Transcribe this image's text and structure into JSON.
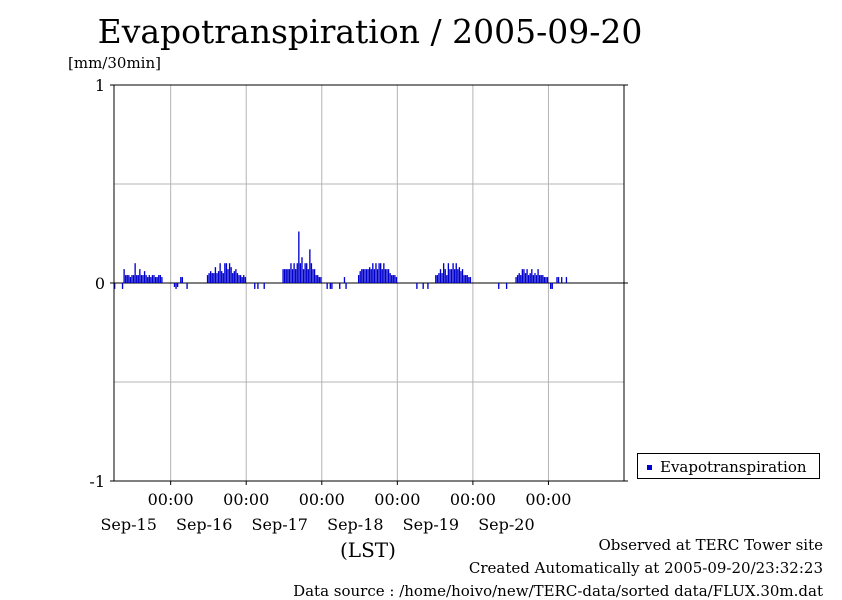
{
  "title": "Evapotranspiration / 2005-09-20",
  "unit": "[mm/30min]",
  "x_unit": "(LST)",
  "legend_label": "Evapotranspiration",
  "series_color": "#0000cc",
  "footer": {
    "line1": "Observed at TERC Tower site",
    "line2": "Created Automatically at 2005-09-20/23:32:23",
    "line3": "Data source : /home/hoivo/new/TERC-data/sorted  data/FLUX.30m.dat"
  },
  "chart_data": {
    "type": "bar",
    "title": "Evapotranspiration / 2005-09-20",
    "ylabel": "[mm/30min]",
    "xlabel": "(LST)",
    "ylim": [
      -1,
      1
    ],
    "yticks": [
      -1,
      0,
      1
    ],
    "xlim_days": [
      "2005-09-14 06:00",
      "2005-09-21 00:00"
    ],
    "grid": true,
    "legend_position": "right",
    "xticks": [
      {
        "time": "00:00",
        "date": "Sep-15"
      },
      {
        "time": "00:00",
        "date": "Sep-16"
      },
      {
        "time": "00:00",
        "date": "Sep-17"
      },
      {
        "time": "00:00",
        "date": "Sep-18"
      },
      {
        "time": "00:00",
        "date": "Sep-19"
      },
      {
        "time": "00:00",
        "date": "Sep-20"
      }
    ],
    "series": [
      {
        "name": "Evapotranspiration",
        "day_starts": [
          "2005-09-14",
          "2005-09-15",
          "2005-09-16",
          "2005-09-17",
          "2005-09-18",
          "2005-09-19",
          "2005-09-20"
        ],
        "values_by_day": [
          [
            0,
            0,
            0,
            0,
            0,
            0,
            0,
            0,
            0,
            0,
            0,
            0,
            -0.03,
            0,
            0,
            0,
            0,
            -0.03,
            0.07,
            0.04,
            0.04,
            0.04,
            0.03,
            0.04,
            0.04,
            0.1,
            0.04,
            0.04,
            0.07,
            0.04,
            0.04,
            0.06,
            0.04,
            0.03,
            0.04,
            0.03,
            0.04,
            0.04,
            0.03,
            0.03,
            0.04,
            0.04,
            0.03,
            0,
            0,
            0,
            0,
            0
          ],
          [
            0,
            0,
            -0.02,
            -0.03,
            -0.02,
            0,
            0.03,
            0.03,
            0,
            0,
            -0.03,
            0,
            0,
            0,
            0,
            0,
            0,
            0,
            0,
            0,
            0,
            0,
            0,
            0.04,
            0.05,
            0.06,
            0.05,
            0.05,
            0.08,
            0.05,
            0.06,
            0.1,
            0.06,
            0.05,
            0.1,
            0.1,
            0.07,
            0.1,
            0.08,
            0.05,
            0.06,
            0.07,
            0.05,
            0.04,
            0.04,
            0.03,
            0.04,
            0.03
          ],
          [
            0,
            0,
            0,
            0,
            0,
            -0.03,
            0,
            -0.03,
            0,
            0,
            0,
            -0.03,
            0,
            0,
            0,
            0,
            0,
            0,
            0,
            0,
            0,
            0,
            0,
            0.07,
            0.07,
            0.07,
            0.07,
            0.07,
            0.1,
            0.07,
            0.1,
            0.07,
            0.1,
            0.26,
            0.1,
            0.13,
            0.07,
            0.1,
            0.1,
            0.07,
            0.17,
            0.1,
            0.07,
            0.07,
            0.04,
            0.04,
            0.03,
            0.03
          ],
          [
            0,
            0,
            0,
            -0.03,
            0,
            -0.03,
            -0.03,
            0,
            0,
            0,
            0,
            -0.03,
            0,
            0,
            0.03,
            -0.03,
            0,
            0,
            0,
            0,
            0,
            0,
            0,
            0.04,
            0.06,
            0.07,
            0.07,
            0.07,
            0.07,
            0.07,
            0.08,
            0.07,
            0.1,
            0.07,
            0.1,
            0.07,
            0.1,
            0.1,
            0.07,
            0.1,
            0.07,
            0.07,
            0.07,
            0.05,
            0.04,
            0.04,
            0.04,
            0.03
          ],
          [
            0,
            0,
            0,
            0,
            0,
            0,
            0,
            0,
            0,
            0,
            0,
            0,
            -0.03,
            0,
            0,
            0,
            -0.03,
            0,
            0,
            -0.03,
            0,
            0,
            0,
            0,
            0.04,
            0.04,
            0.05,
            0.07,
            0.05,
            0.1,
            0.07,
            0.04,
            0.1,
            0.07,
            0.07,
            0.1,
            0.07,
            0.1,
            0.07,
            0.08,
            0.06,
            0.07,
            0.04,
            0.04,
            0.04,
            0.03,
            0.03,
            0
          ],
          [
            0,
            0,
            0,
            0,
            0,
            0,
            0,
            0,
            0,
            0,
            0,
            0,
            0,
            0,
            0,
            0,
            -0.03,
            0,
            0,
            0,
            0,
            -0.03,
            0,
            0,
            0,
            0,
            0,
            0.03,
            0.04,
            0.05,
            0.04,
            0.07,
            0.07,
            0.05,
            0.07,
            0.04,
            0.05,
            0.07,
            0.04,
            0.05,
            0.04,
            0.07,
            0.04,
            0.04,
            0.04,
            0.03,
            0.03,
            0.03
          ],
          [
            0,
            -0.03,
            -0.03,
            0,
            0,
            0.03,
            0.03,
            0,
            0.03,
            0,
            0,
            0.03,
            0,
            0,
            0,
            0,
            0,
            0,
            0,
            0,
            0,
            0,
            0,
            0,
            0,
            0,
            0,
            0,
            0,
            0,
            0,
            0,
            0,
            0,
            0,
            0,
            0,
            0,
            0,
            0,
            0,
            0,
            0,
            0,
            0,
            0,
            0,
            0
          ]
        ]
      }
    ]
  }
}
